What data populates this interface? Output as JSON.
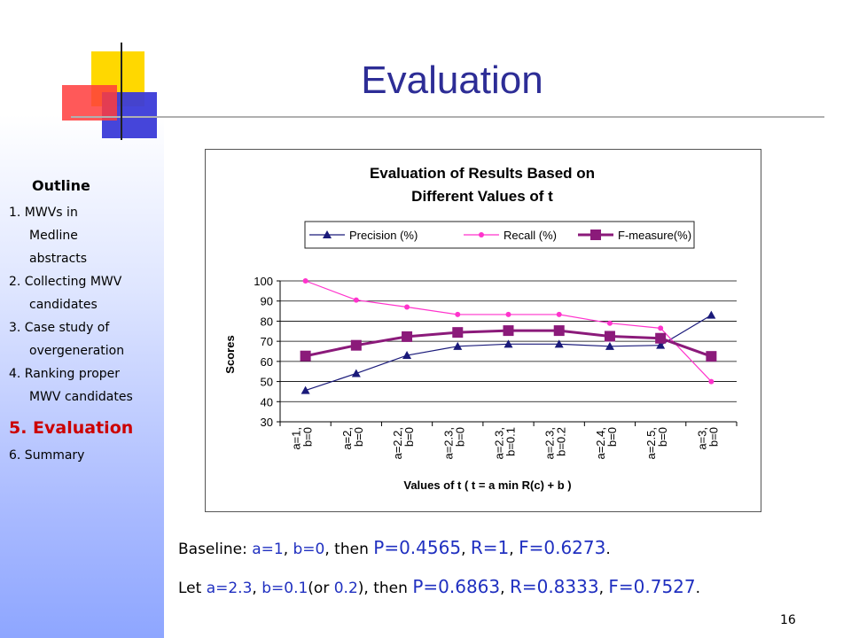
{
  "slide": {
    "title": "Evaluation",
    "page_number": "16"
  },
  "outline": {
    "heading": "Outline",
    "lines": [
      "1. MWVs in",
      "Medline",
      "abstracts",
      "2. Collecting MWV",
      "candidates",
      "3. Case study of",
      "overgeneration",
      "4. Ranking proper",
      "MWV candidates",
      "5. Evaluation",
      "6. Summary"
    ],
    "active_item": "5. Evaluation"
  },
  "chart_data": {
    "type": "line",
    "title_line1": "Evaluation of Results Based on",
    "title_line2": "Different Values of t",
    "xlabel": "Values of t ( t = a min R(c) + b )",
    "ylabel": "Scores",
    "ylim": [
      30,
      100
    ],
    "yticks": [
      "100",
      "90",
      "80",
      "70",
      "60",
      "50",
      "40",
      "30"
    ],
    "grid": true,
    "legend_position": "top",
    "categories": [
      [
        "a=1,",
        "b=0"
      ],
      [
        "a=2,",
        "b=0"
      ],
      [
        "a=2.2,",
        "b=0"
      ],
      [
        "a=2.3,",
        "b=0"
      ],
      [
        "a=2.3,",
        "b=0.1"
      ],
      [
        "a=2.3,",
        "b=0.2"
      ],
      [
        "a=2.4,",
        "b=0"
      ],
      [
        "a=2.5,",
        "b=0"
      ],
      [
        "a=3,",
        "b=0"
      ]
    ],
    "series": [
      {
        "name": "Precision (%)",
        "color": "#1a1a7a",
        "marker": "triangle",
        "values": [
          45.6,
          54,
          63,
          67.5,
          68.6,
          68.6,
          67.5,
          68,
          83
        ]
      },
      {
        "name": "Recall (%)",
        "color": "#ff33cc",
        "marker": "circle",
        "values": [
          100,
          90.5,
          87,
          83.3,
          83.3,
          83.3,
          79,
          76.5,
          50
        ]
      },
      {
        "name": "F-measure(%)",
        "color": "#8b1a7a",
        "marker": "square",
        "values": [
          62.7,
          68,
          72.3,
          74.4,
          75.3,
          75.3,
          72.5,
          71.5,
          62.5
        ]
      }
    ]
  },
  "notes": {
    "line1": {
      "label": "Baseline:",
      "a": "a=1",
      "sep1": ", ",
      "b": "b=0",
      "mid": ", then ",
      "p": "P=0.4565",
      "sep2": ", ",
      "r": "R=1",
      "sep3": ", ",
      "f": "F=0.6273",
      "end": "."
    },
    "line2": {
      "label": "Let ",
      "a": "a=2.3",
      "sep1": ", ",
      "b": "b=0.1",
      "paren_open": "(or ",
      "b_alt": "0.2",
      "paren_close": ")",
      "mid": ", then ",
      "p": "P=0.6863",
      "sep2": ", ",
      "r": "R=0.8333",
      "sep3": ", ",
      "f": "F=0.7527",
      "end": "."
    }
  }
}
